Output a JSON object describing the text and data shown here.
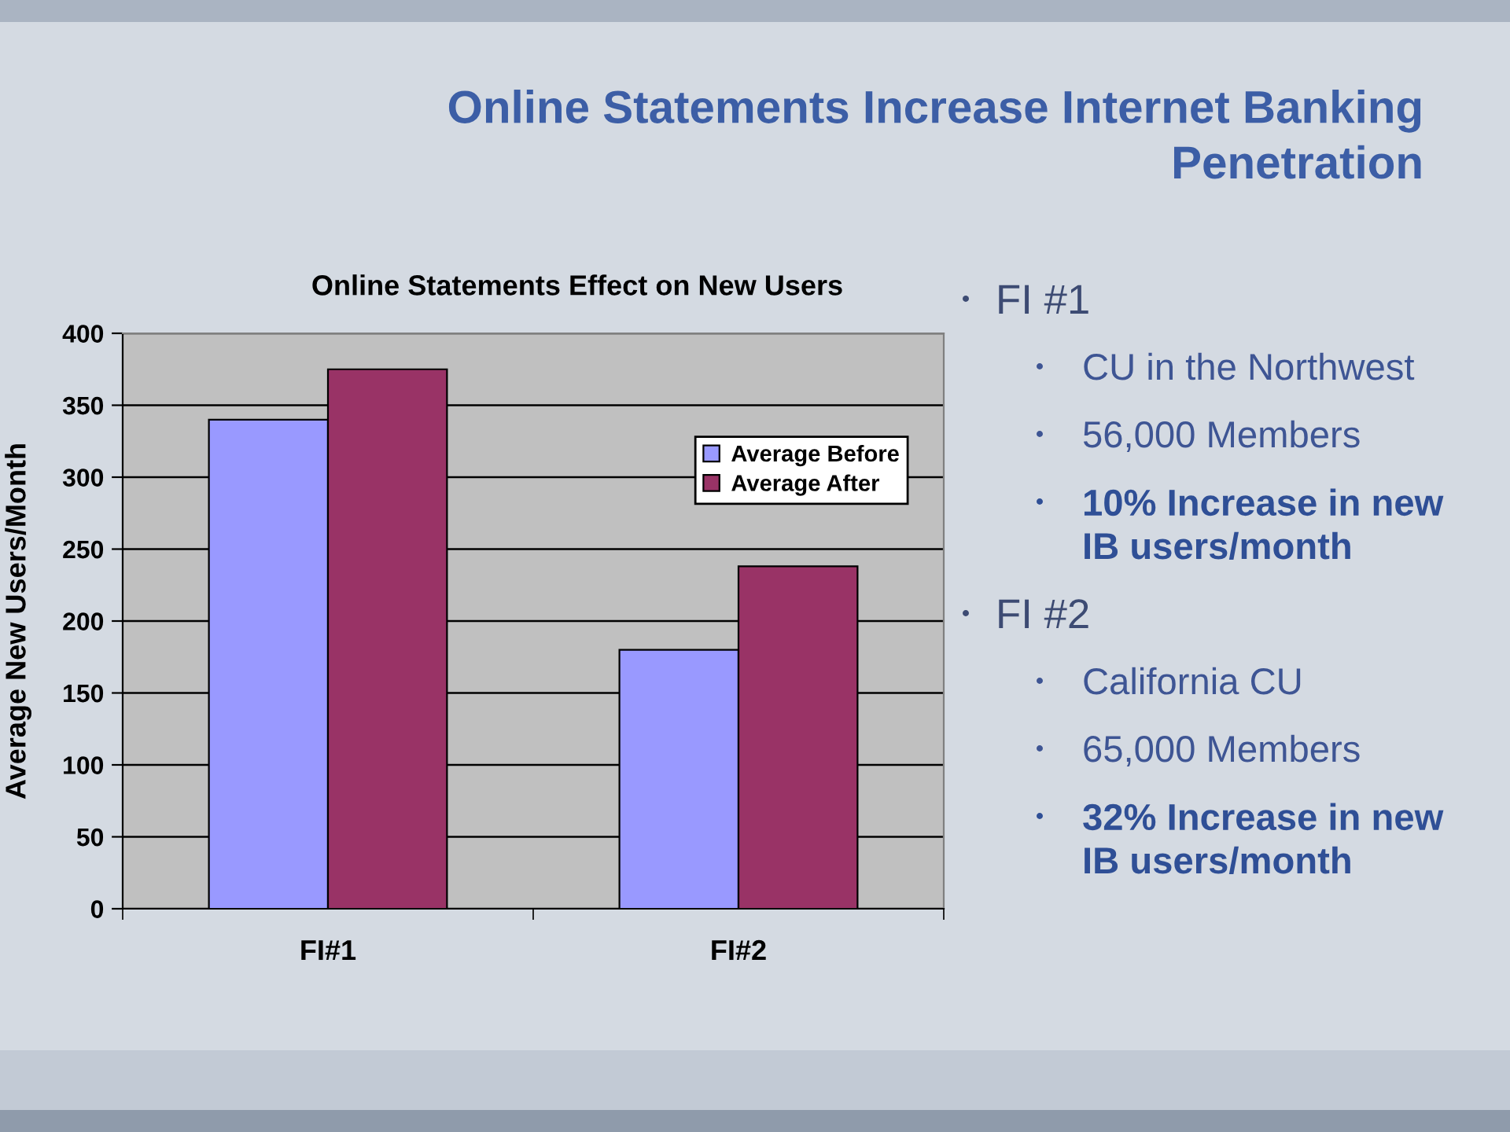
{
  "chart_data": {
    "type": "bar",
    "title": "Online Statements Increase Internet Banking Penetration",
    "subtitle": "Online Statements Effect on New Users",
    "ylabel": "Average New Users/Month",
    "categories": [
      "FI#1",
      "FI#2"
    ],
    "series": [
      {
        "name": "Average Before",
        "color": "#9999ff",
        "values": [
          340,
          180
        ]
      },
      {
        "name": "Average After",
        "color": "#993366",
        "values": [
          375,
          238
        ]
      }
    ],
    "ylim": [
      0,
      400
    ],
    "yticks": [
      0,
      50,
      100,
      150,
      200,
      250,
      300,
      350,
      400
    ],
    "grid": "y",
    "legend": "top right",
    "annotations": [
      "FI #1",
      "CU in the Northwest",
      "56,000 Members",
      "10% Increase in new IB users/month",
      "FI #2",
      "California CU",
      "65,000 Members",
      "32% Increase in new IB users/month"
    ]
  }
}
